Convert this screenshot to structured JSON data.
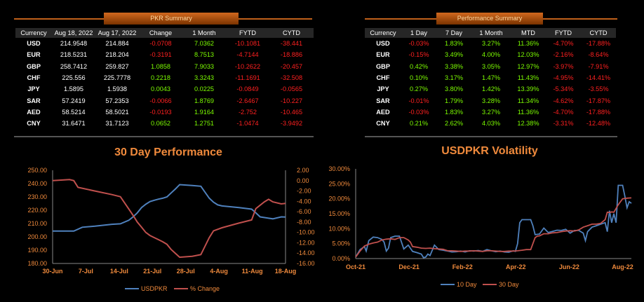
{
  "pkr_summary": {
    "title": "PKR Summary",
    "columns": [
      "Currency",
      "Aug 18, 2022",
      "Aug 17, 2022",
      "Change",
      "1 Month",
      "FYTD",
      "CYTD"
    ],
    "rows": [
      [
        "USD",
        "214.9548",
        "214.884",
        "-0.0708",
        "7.0362",
        "-10.1081",
        "-38.441"
      ],
      [
        "EUR",
        "218.5231",
        "218.204",
        "-0.3191",
        "8.7513",
        "-4.7144",
        "-18.886"
      ],
      [
        "GBP",
        "258.7412",
        "259.827",
        "1.0858",
        "7.9033",
        "-10.2622",
        "-20.457"
      ],
      [
        "CHF",
        "225.556",
        "225.7778",
        "0.2218",
        "3.3243",
        "-11.1691",
        "-32.508"
      ],
      [
        "JPY",
        "1.5895",
        "1.5938",
        "0.0043",
        "0.0225",
        "-0.0849",
        "-0.0565"
      ],
      [
        "SAR",
        "57.2419",
        "57.2353",
        "-0.0066",
        "1.8769",
        "-2.6467",
        "-10.227"
      ],
      [
        "AED",
        "58.5214",
        "58.5021",
        "-0.0193",
        "1.9164",
        "-2.752",
        "-10.465"
      ],
      [
        "CNY",
        "31.6471",
        "31.7123",
        "0.0652",
        "1.2751",
        "-1.0474",
        "-3.9492"
      ]
    ]
  },
  "performance_summary": {
    "title": "Performance Summary",
    "columns": [
      "Currency",
      "1 Day",
      "7 Day",
      "1 Month",
      "MTD",
      "FYTD",
      "CYTD"
    ],
    "rows": [
      [
        "USD",
        "-0.03%",
        "1.83%",
        "3.27%",
        "11.36%",
        "-4.70%",
        "-17.88%"
      ],
      [
        "EUR",
        "-0.15%",
        "3.49%",
        "4.00%",
        "12.03%",
        "-2.16%",
        "-8.64%"
      ],
      [
        "GBP",
        "0.42%",
        "3.38%",
        "3.05%",
        "12.97%",
        "-3.97%",
        "-7.91%"
      ],
      [
        "CHF",
        "0.10%",
        "3.17%",
        "1.47%",
        "11.43%",
        "-4.95%",
        "-14.41%"
      ],
      [
        "JPY",
        "0.27%",
        "3.80%",
        "1.42%",
        "13.39%",
        "-5.34%",
        "-3.55%"
      ],
      [
        "SAR",
        "-0.01%",
        "1.79%",
        "3.28%",
        "11.34%",
        "-4.62%",
        "-17.87%"
      ],
      [
        "AED",
        "-0.03%",
        "1.83%",
        "3.27%",
        "11.36%",
        "-4.70%",
        "-17.88%"
      ],
      [
        "CNY",
        "0.21%",
        "2.62%",
        "4.03%",
        "12.38%",
        "-3.31%",
        "-12.48%"
      ]
    ]
  },
  "colors": {
    "pos": "#7CFC00",
    "neg": "#ff2020",
    "accent": "#f08a3c",
    "usdpkr": "#4f81bd",
    "pct": "#c0504d"
  },
  "chart_data": [
    {
      "type": "line",
      "title": "30 Day Performance",
      "categories": [
        "30-Jun",
        "7-Jul",
        "14-Jul",
        "21-Jul",
        "28-Jul",
        "4-Aug",
        "11-Aug",
        "18-Aug"
      ],
      "x": [
        0,
        1,
        2,
        3,
        4,
        5,
        6,
        7,
        8,
        9,
        10,
        11,
        12,
        13,
        14,
        15,
        16,
        17,
        18,
        19,
        20,
        21,
        22,
        23,
        24,
        25,
        26,
        27,
        28,
        29,
        30,
        31,
        32,
        33,
        34,
        35,
        36,
        37,
        38,
        39,
        40,
        41,
        42,
        43,
        44,
        45,
        46,
        47,
        48,
        49,
        50
      ],
      "y_left": {
        "min": 180,
        "max": 250,
        "step": 10,
        "labels": [
          "180.00",
          "190.00",
          "200.00",
          "210.00",
          "220.00",
          "230.00",
          "240.00",
          "250.00"
        ]
      },
      "y_right": {
        "min": -16,
        "max": 2,
        "step": 2,
        "labels": [
          "-16.00",
          "-14.00",
          "-12.00",
          "-10.00",
          "-8.00",
          "-6.00",
          "-4.00",
          "-2.00",
          "0.00",
          "2.00"
        ]
      },
      "series": [
        {
          "name": "USDPKR",
          "axis": "left",
          "color": "#4f81bd",
          "points": [
            [
              0,
              204.3
            ],
            [
              5,
              204.3
            ],
            [
              7,
              207.2
            ],
            [
              10,
              208
            ],
            [
              14,
              209.4
            ],
            [
              16,
              209.8
            ],
            [
              18,
              212.5
            ],
            [
              19,
              215
            ],
            [
              20,
              218
            ],
            [
              21,
              222
            ],
            [
              22,
              224.5
            ],
            [
              23,
              226.5
            ],
            [
              24,
              227.5
            ],
            [
              25,
              228.3
            ],
            [
              26,
              229
            ],
            [
              27,
              230
            ],
            [
              28,
              233
            ],
            [
              29,
              236
            ],
            [
              30,
              239.2
            ],
            [
              33,
              238.5
            ],
            [
              35,
              238
            ],
            [
              37,
              229
            ],
            [
              38,
              226
            ],
            [
              39,
              224
            ],
            [
              40,
              223.2
            ],
            [
              44,
              222
            ],
            [
              47,
              220.8
            ],
            [
              48,
              218
            ],
            [
              49,
              215
            ],
            [
              52,
              213.5
            ],
            [
              54,
              215
            ],
            [
              55,
              214.9
            ]
          ]
        },
        {
          "name": "% Change",
          "axis": "right",
          "color": "#c0504d",
          "points": [
            [
              0,
              0
            ],
            [
              4,
              0.2
            ],
            [
              5,
              0
            ],
            [
              6,
              -1.3
            ],
            [
              10,
              -2
            ],
            [
              14,
              -2.7
            ],
            [
              16,
              -3.1
            ],
            [
              18,
              -5.5
            ],
            [
              19,
              -6.7
            ],
            [
              20,
              -8
            ],
            [
              21,
              -9
            ],
            [
              22,
              -10
            ],
            [
              23,
              -10.6
            ],
            [
              24,
              -11
            ],
            [
              25,
              -11.4
            ],
            [
              26,
              -11.8
            ],
            [
              27,
              -12.3
            ],
            [
              28,
              -13.3
            ],
            [
              30,
              -14.8
            ],
            [
              33,
              -14.6
            ],
            [
              35,
              -14.3
            ],
            [
              37,
              -11
            ],
            [
              38,
              -9.7
            ],
            [
              40,
              -9.1
            ],
            [
              44,
              -8.2
            ],
            [
              47,
              -7.6
            ],
            [
              48,
              -5.4
            ],
            [
              50,
              -4.1
            ],
            [
              51,
              -3.6
            ],
            [
              52,
              -4.1
            ],
            [
              54,
              -4.5
            ],
            [
              55,
              -4.4
            ]
          ]
        }
      ],
      "legend": "bottom"
    },
    {
      "type": "line",
      "title": "USDPKR Volatility",
      "categories": [
        "Oct-21",
        "Dec-21",
        "Feb-22",
        "Apr-22",
        "Jun-22",
        "Aug-22"
      ],
      "y": {
        "min": 0,
        "max": 30,
        "step": 5,
        "labels": [
          "0.00%",
          "5.00%",
          "10.00%",
          "15.00%",
          "20.00%",
          "25.00%",
          "30.00%"
        ]
      },
      "series": [
        {
          "name": "10 Day",
          "color": "#4f81bd",
          "points": [
            [
              0,
              0.5
            ],
            [
              1,
              3
            ],
            [
              2,
              4
            ],
            [
              2.4,
              2.5
            ],
            [
              3,
              6
            ],
            [
              4,
              7.2
            ],
            [
              5,
              7
            ],
            [
              6,
              6.4
            ],
            [
              6.5,
              5.5
            ],
            [
              7,
              2.5
            ],
            [
              7.5,
              3.5
            ],
            [
              8,
              7
            ],
            [
              9,
              7.5
            ],
            [
              10,
              7.5
            ],
            [
              11,
              3.2
            ],
            [
              12,
              4.5
            ],
            [
              13,
              2.4
            ],
            [
              14,
              2
            ],
            [
              15,
              1.5
            ],
            [
              15.5,
              0.3
            ],
            [
              16,
              0.5
            ],
            [
              16.5,
              1.5
            ],
            [
              17,
              1
            ],
            [
              18,
              4.5
            ],
            [
              19,
              3
            ],
            [
              20,
              2.8
            ],
            [
              21,
              2.5
            ],
            [
              22,
              2.2
            ],
            [
              23,
              2.3
            ],
            [
              24,
              2.5
            ],
            [
              25,
              2.2
            ],
            [
              26,
              2.6
            ],
            [
              27,
              2.5
            ],
            [
              28,
              2.7
            ],
            [
              29,
              2.4
            ],
            [
              30,
              3
            ],
            [
              31,
              2.6
            ],
            [
              32,
              2.3
            ],
            [
              33,
              2.5
            ],
            [
              34,
              2.2
            ],
            [
              35,
              2.1
            ],
            [
              36,
              2.6
            ],
            [
              36.5,
              2.4
            ],
            [
              37,
              5
            ],
            [
              37.5,
              12
            ],
            [
              38,
              13
            ],
            [
              39,
              13
            ],
            [
              40,
              13
            ],
            [
              40.5,
              11
            ],
            [
              41,
              8
            ],
            [
              42,
              8.2
            ],
            [
              43,
              10.2
            ],
            [
              44,
              8.7
            ],
            [
              45,
              9.1
            ],
            [
              46,
              9.5
            ],
            [
              47,
              9.4
            ],
            [
              48,
              9.8
            ],
            [
              49,
              8.5
            ],
            [
              50,
              9.4
            ],
            [
              51,
              9.4
            ],
            [
              52,
              8.5
            ],
            [
              52.5,
              6
            ],
            [
              53,
              9
            ],
            [
              54,
              10.5
            ],
            [
              55,
              11
            ],
            [
              56,
              11.5
            ],
            [
              57,
              12
            ],
            [
              57.5,
              9
            ],
            [
              58,
              16
            ],
            [
              58.5,
              12
            ],
            [
              59,
              15
            ],
            [
              59.5,
              12
            ],
            [
              60,
              24.5
            ],
            [
              61,
              24.5
            ],
            [
              61.5,
              21
            ],
            [
              62,
              17
            ],
            [
              62.5,
              19
            ],
            [
              63,
              18.5
            ]
          ]
        },
        {
          "name": "30 Day",
          "color": "#c0504d",
          "points": [
            [
              0,
              0.5
            ],
            [
              1,
              2.5
            ],
            [
              2,
              4.2
            ],
            [
              3,
              4.8
            ],
            [
              4,
              5.2
            ],
            [
              5,
              5.5
            ],
            [
              6,
              6.2
            ],
            [
              7,
              6.5
            ],
            [
              8,
              6.6
            ],
            [
              9,
              6.4
            ],
            [
              10,
              7
            ],
            [
              11,
              7
            ],
            [
              12,
              6.2
            ],
            [
              12.5,
              5.5
            ],
            [
              13,
              4
            ],
            [
              14,
              3.8
            ],
            [
              15,
              3.5
            ],
            [
              16,
              3.4
            ],
            [
              17,
              3.5
            ],
            [
              18,
              3.3
            ],
            [
              19,
              3.2
            ],
            [
              20,
              3.1
            ],
            [
              21,
              2.6
            ],
            [
              22,
              2.6
            ],
            [
              23,
              2.5
            ],
            [
              24,
              2.4
            ],
            [
              25,
              2.5
            ],
            [
              26,
              2.5
            ],
            [
              27,
              2.6
            ],
            [
              28,
              2.5
            ],
            [
              29,
              2.4
            ],
            [
              30,
              2.6
            ],
            [
              31,
              2.6
            ],
            [
              32,
              2.5
            ],
            [
              33,
              2.4
            ],
            [
              34,
              2.4
            ],
            [
              35,
              2.5
            ],
            [
              36,
              2.5
            ],
            [
              37,
              2.6
            ],
            [
              38,
              2.8
            ],
            [
              39,
              3
            ],
            [
              40,
              3
            ],
            [
              41,
              7
            ],
            [
              41.5,
              7.5
            ],
            [
              42,
              7.6
            ],
            [
              43,
              8.3
            ],
            [
              44,
              8.3
            ],
            [
              45,
              8.6
            ],
            [
              46,
              8.7
            ],
            [
              47,
              9
            ],
            [
              48,
              9.2
            ],
            [
              49,
              9.3
            ],
            [
              50,
              9.2
            ],
            [
              51,
              9.6
            ],
            [
              52,
              10.5
            ],
            [
              53,
              11
            ],
            [
              54,
              11.5
            ],
            [
              55,
              11.5
            ],
            [
              56,
              11.8
            ],
            [
              57,
              13
            ],
            [
              57.5,
              15.5
            ],
            [
              58,
              15.4
            ],
            [
              58.5,
              15.6
            ],
            [
              59,
              15.5
            ],
            [
              60,
              18
            ],
            [
              61,
              20
            ],
            [
              62,
              20.2
            ],
            [
              63,
              20.3
            ]
          ]
        }
      ],
      "legend": "bottom"
    }
  ]
}
